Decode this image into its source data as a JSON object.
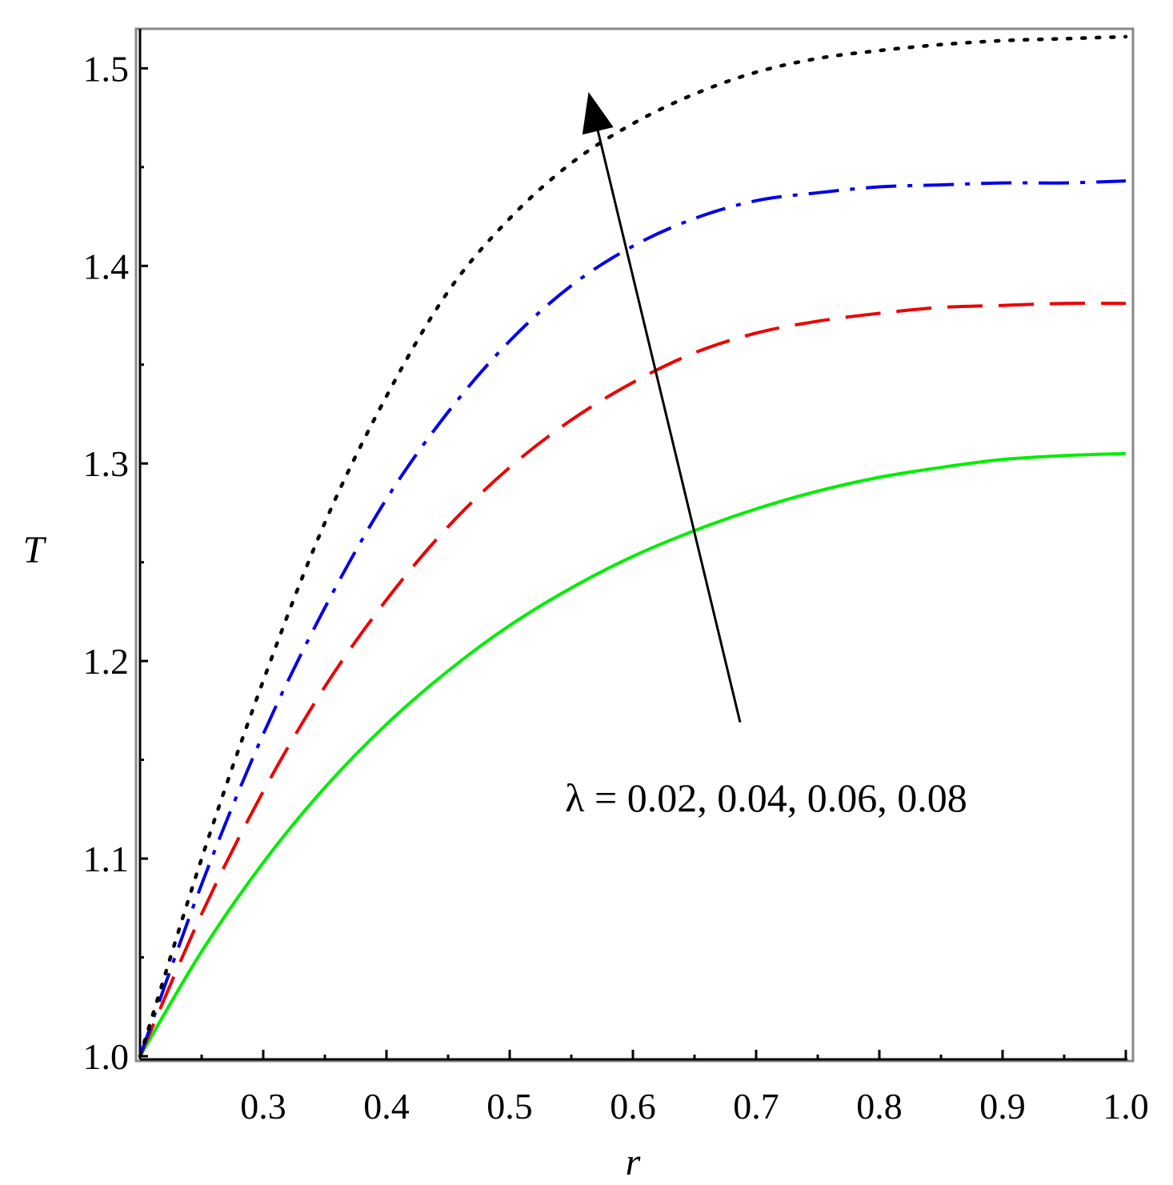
{
  "chart_data": {
    "type": "line",
    "title": "",
    "xlabel": "r",
    "ylabel": "T",
    "xlim": [
      0.2,
      1.0
    ],
    "ylim": [
      1.0,
      1.52
    ],
    "x_ticks": [
      0.3,
      0.4,
      0.5,
      0.6,
      0.7,
      0.8,
      0.9,
      1.0
    ],
    "x_tick_labels": [
      "0.3",
      "0.4",
      "0.5",
      "0.6",
      "0.7",
      "0.8",
      "0.9",
      "1.0"
    ],
    "x_minor_ticks": [
      0.25,
      0.35,
      0.45,
      0.55,
      0.65,
      0.75,
      0.85,
      0.95
    ],
    "y_ticks": [
      1.0,
      1.1,
      1.2,
      1.3,
      1.4,
      1.5
    ],
    "y_tick_labels": [
      "1.0",
      "1.1",
      "1.2",
      "1.3",
      "1.4",
      "1.5"
    ],
    "y_minor_ticks": [
      1.05,
      1.15,
      1.25,
      1.35,
      1.45
    ],
    "grid": false,
    "legend": "none",
    "series": [
      {
        "color": "#00ee00",
        "dash": "solid",
        "x": [
          0.2,
          0.25,
          0.3,
          0.35,
          0.4,
          0.45,
          0.5,
          0.55,
          0.6,
          0.65,
          0.7,
          0.75,
          0.8,
          0.85,
          0.9,
          0.95,
          1.0
        ],
        "y": [
          1.0,
          1.053,
          1.098,
          1.136,
          1.168,
          1.195,
          1.218,
          1.237,
          1.253,
          1.266,
          1.277,
          1.286,
          1.293,
          1.298,
          1.302,
          1.304,
          1.305
        ]
      },
      {
        "color": "#ee0000",
        "dash": "dashed",
        "x": [
          0.2,
          0.25,
          0.3,
          0.35,
          0.4,
          0.45,
          0.5,
          0.55,
          0.6,
          0.65,
          0.7,
          0.75,
          0.8,
          0.85,
          0.9,
          0.95,
          1.0
        ],
        "y": [
          1.0,
          1.072,
          1.134,
          1.187,
          1.231,
          1.268,
          1.298,
          1.322,
          1.341,
          1.356,
          1.366,
          1.372,
          1.376,
          1.379,
          1.38,
          1.381,
          1.381
        ]
      },
      {
        "color": "#0000ee",
        "dash": "dashdot",
        "x": [
          0.2,
          0.25,
          0.3,
          0.35,
          0.4,
          0.45,
          0.5,
          0.55,
          0.6,
          0.65,
          0.7,
          0.75,
          0.8,
          0.85,
          0.9,
          0.95,
          1.0
        ],
        "y": [
          1.0,
          1.087,
          1.163,
          1.227,
          1.282,
          1.326,
          1.362,
          1.39,
          1.41,
          1.424,
          1.433,
          1.437,
          1.44,
          1.441,
          1.442,
          1.442,
          1.443
        ]
      },
      {
        "color": "#000000",
        "dash": "dotted",
        "x": [
          0.2,
          0.25,
          0.3,
          0.35,
          0.4,
          0.45,
          0.5,
          0.55,
          0.6,
          0.65,
          0.7,
          0.75,
          0.8,
          0.85,
          0.9,
          0.95,
          1.0
        ],
        "y": [
          1.0,
          1.1,
          1.19,
          1.27,
          1.334,
          1.387,
          1.424,
          1.452,
          1.472,
          1.487,
          1.498,
          1.505,
          1.509,
          1.512,
          1.514,
          1.515,
          1.516
        ]
      }
    ],
    "annotation": {
      "text": "λ = 0.02, 0.04, 0.06, 0.08",
      "x": 0.545,
      "y": 1.124
    },
    "arrow": {
      "from": [
        0.687,
        1.169
      ],
      "to": [
        0.564,
        1.488
      ],
      "color": "#000000"
    }
  }
}
